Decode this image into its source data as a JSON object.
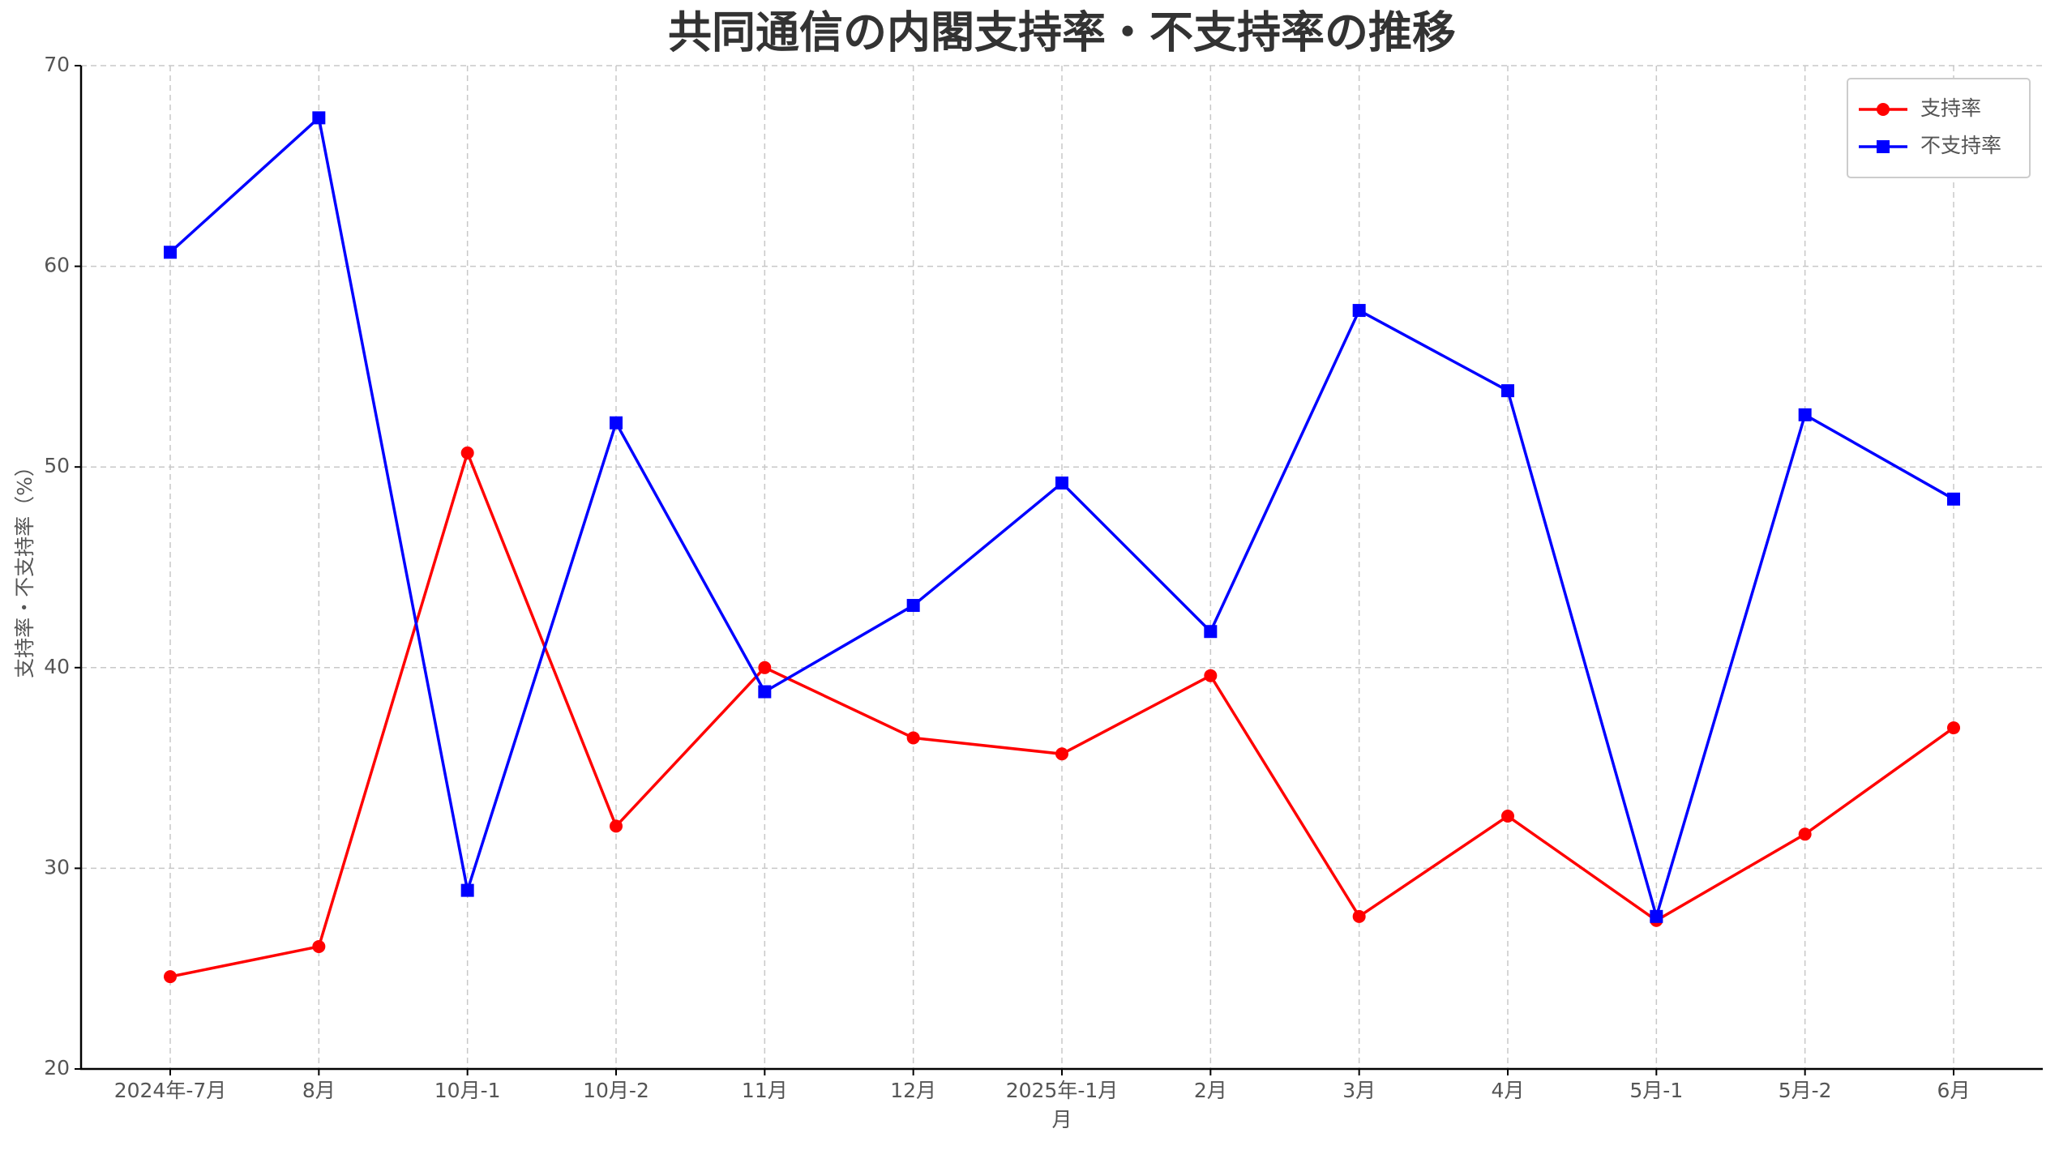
{
  "chart_data": {
    "type": "line",
    "title": "共同通信の内閣支持率・不支持率の推移",
    "x_label": "月",
    "y_label": "支持率・不支持率（%）",
    "categories": [
      "2024年-7月",
      "8月",
      "10月-1",
      "10月-2",
      "11月",
      "12月",
      "2025年-1月",
      "2月",
      "3月",
      "4月",
      "5月-1",
      "5月-2",
      "6月"
    ],
    "series": [
      {
        "name": "支持率",
        "color": "#ff0000",
        "marker": "circle",
        "values": [
          24.6,
          26.1,
          50.7,
          32.1,
          40.0,
          36.5,
          35.7,
          39.6,
          27.6,
          32.6,
          27.4,
          31.7,
          37.0
        ]
      },
      {
        "name": "不支持率",
        "color": "#0000ff",
        "marker": "square",
        "values": [
          60.7,
          67.4,
          28.9,
          52.2,
          38.8,
          43.1,
          49.2,
          41.8,
          57.8,
          53.8,
          27.6,
          52.6,
          48.4
        ]
      }
    ],
    "ylim": [
      20,
      70
    ],
    "yticks": [
      20,
      30,
      40,
      50,
      60,
      70
    ],
    "grid": true,
    "legend": "upper right"
  }
}
